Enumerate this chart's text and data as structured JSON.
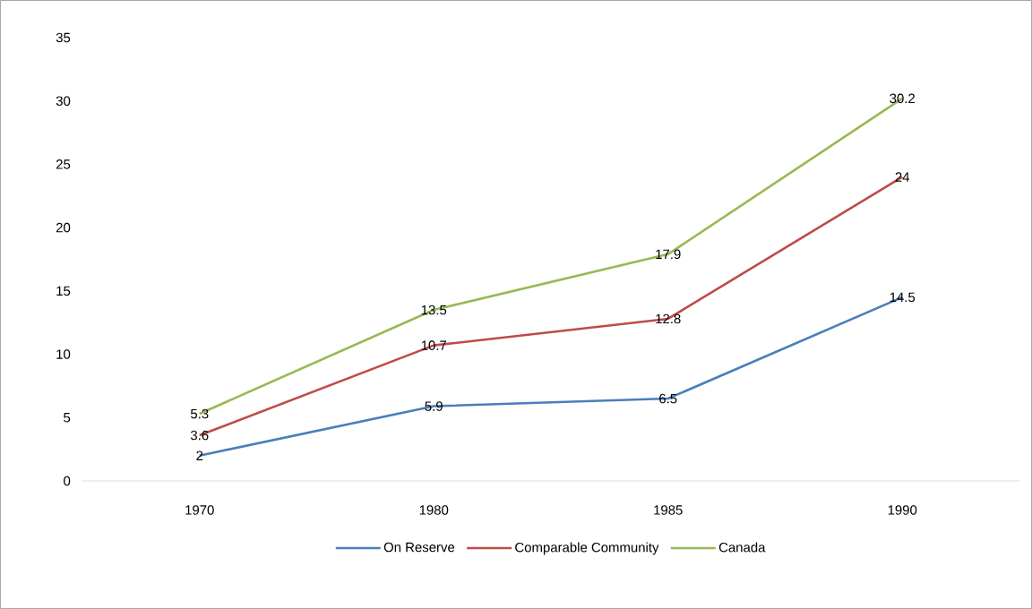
{
  "chart_data": {
    "type": "line",
    "categories": [
      "1970",
      "1980",
      "1985",
      "1990"
    ],
    "series": [
      {
        "name": "On Reserve",
        "color": "#4a7ebb",
        "values": [
          2,
          5.9,
          6.5,
          14.5
        ]
      },
      {
        "name": "Comparable Community",
        "color": "#be4b48",
        "values": [
          3.6,
          10.7,
          12.8,
          24
        ]
      },
      {
        "name": "Canada",
        "color": "#98b954",
        "values": [
          5.3,
          13.5,
          17.9,
          30.2
        ]
      }
    ],
    "ylim": [
      0,
      35
    ],
    "yticks": [
      0,
      5,
      10,
      15,
      20,
      25,
      30,
      35
    ],
    "grid": false,
    "legend": "bottom",
    "marker": "none",
    "line_style": "solid",
    "data_labels": true
  }
}
